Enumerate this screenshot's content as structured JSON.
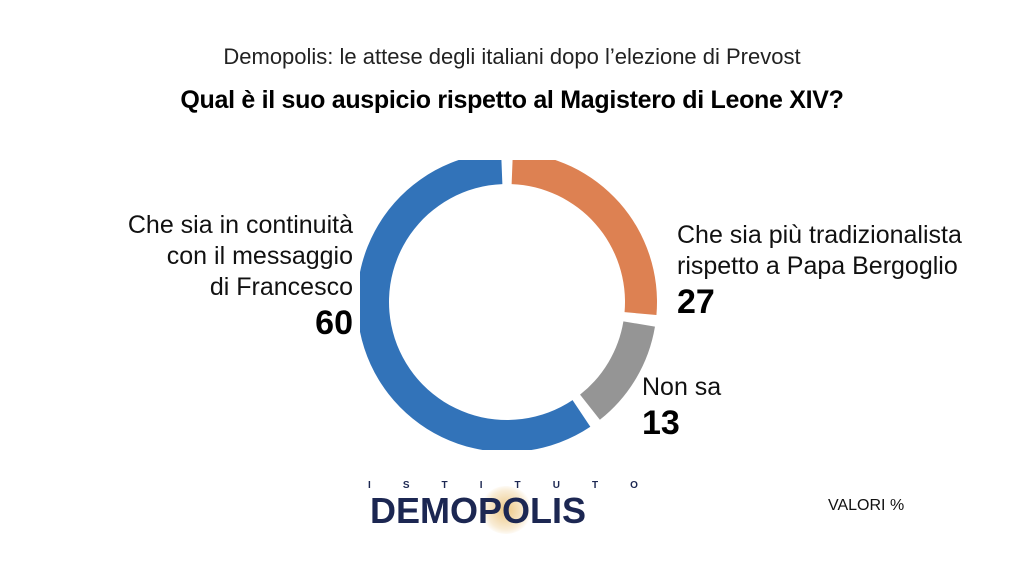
{
  "header": {
    "subtitle": "Demopolis: le attese degli italiani dopo l’elezione di Prevost",
    "title": "Qual è il suo auspicio rispetto al Magistero di Leone XIV?"
  },
  "chart_data": {
    "type": "pie",
    "variant": "donut",
    "title": "Qual è il suo auspicio rispetto al Magistero di Leone XIV?",
    "subtitle": "Demopolis: le attese degli italiani dopo l’elezione di Prevost",
    "unit": "VALORI %",
    "slices": [
      {
        "label_lines": [
          "Che sia più tradizionalista",
          "rispetto a Papa Bergoglio"
        ],
        "value": 27,
        "color": "#dd8152"
      },
      {
        "label_lines": [
          "Non sa"
        ],
        "value": 13,
        "color": "#959595"
      },
      {
        "label_lines": [
          "Che sia in continuità",
          "con il messaggio",
          "di Francesco"
        ],
        "value": 60,
        "color": "#3273b9"
      }
    ]
  },
  "footer": {
    "logo_top_letters": [
      "I",
      "S",
      "T",
      "I",
      "T",
      "U",
      "T",
      "O"
    ],
    "logo_main": "DEMOPOLIS",
    "valori_label": "VALORI %"
  }
}
